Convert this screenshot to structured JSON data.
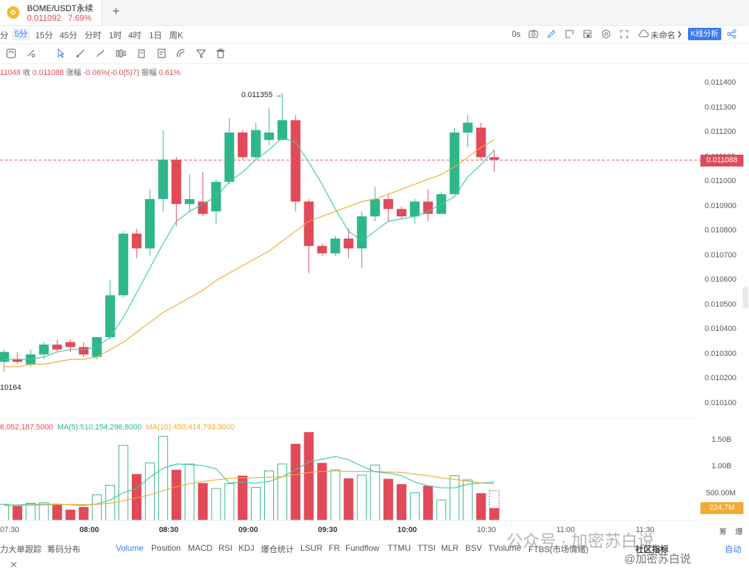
{
  "tab": {
    "symbol": "BOME/USDT永续",
    "price": "0.011092",
    "change": "7.69%",
    "add": "+"
  },
  "timeframes": [
    "分",
    "5分",
    "15分",
    "45分",
    "分时",
    "1时",
    "4时",
    "1日",
    "周K"
  ],
  "active_timeframe_index": 1,
  "right_tools": {
    "countdown": "0s",
    "layout_name": "未命名",
    "analysis_button": "K线分析"
  },
  "ohlc_line": {
    "open": "11048",
    "close_label": "收",
    "close": "0.011088",
    "chg_label": "涨幅",
    "chg": "-0.06%(-0.0(5)7)",
    "amp_label": "振幅",
    "amp": "0.61%"
  },
  "price_axis": [
    "0.011400",
    "0.011300",
    "0.011200",
    "0.011100",
    "0.011000",
    "0.010900",
    "0.010800",
    "0.010700",
    "0.010600",
    "0.010500",
    "0.010400",
    "0.010300",
    "0.010200",
    "0.010100"
  ],
  "current_price": "0.011088",
  "high_label": "0.011355 →",
  "low_label": "10164",
  "volume_legend": {
    "vol": "6,052,187.5000",
    "ma5": "MA(5):510,154,296.8000",
    "ma10": "MA(10):450,414,793.3000"
  },
  "volume_axis": [
    "1.50B",
    "1.00B",
    "500.00M"
  ],
  "current_volume": "224.7M",
  "time_axis": [
    "07:30",
    "08:00",
    "08:30",
    "09:00",
    "09:30",
    "10:00",
    "10:30",
    "11:00",
    "11:30"
  ],
  "right_corner": [
    "筹",
    "爆"
  ],
  "indicators": [
    "力大单跟踪",
    "筹码分布",
    "Volume",
    "Position",
    "MACD",
    "RSI",
    "KDJ",
    "爆仓统计",
    "LSUR",
    "FR",
    "Fundflow",
    "TTMU",
    "TTSI",
    "MLR",
    "BSV",
    "TVolume",
    "FTBS(市场情绪)"
  ],
  "active_indicator_index": 2,
  "community": "社区指标",
  "auto": "自动",
  "watermark": "公众号 · 加密苏白说",
  "watermark_small": "@加密苏白说",
  "colors": {
    "up": "#2fb68a",
    "down": "#e04a59",
    "ma5": "#3fc9a9",
    "ma10": "#f3a932",
    "accent": "#3b7cf6"
  },
  "chart_data": {
    "type": "candlestick",
    "price_range": [
      0.0101,
      0.0114
    ],
    "candles": [
      {
        "o": 0.01027,
        "h": 0.01032,
        "l": 0.01023,
        "c": 0.01031
      },
      {
        "o": 0.01028,
        "h": 0.01031,
        "l": 0.01026,
        "c": 0.01027
      },
      {
        "o": 0.01026,
        "h": 0.01032,
        "l": 0.01025,
        "c": 0.0103
      },
      {
        "o": 0.0103,
        "h": 0.01035,
        "l": 0.01028,
        "c": 0.01034
      },
      {
        "o": 0.01034,
        "h": 0.01036,
        "l": 0.01031,
        "c": 0.01032
      },
      {
        "o": 0.01035,
        "h": 0.01036,
        "l": 0.01031,
        "c": 0.01033
      },
      {
        "o": 0.01033,
        "h": 0.01035,
        "l": 0.01029,
        "c": 0.0103
      },
      {
        "o": 0.01029,
        "h": 0.01037,
        "l": 0.01028,
        "c": 0.01037
      },
      {
        "o": 0.01037,
        "h": 0.0106,
        "l": 0.01036,
        "c": 0.01054
      },
      {
        "o": 0.01054,
        "h": 0.0108,
        "l": 0.01053,
        "c": 0.01079
      },
      {
        "o": 0.01079,
        "h": 0.01081,
        "l": 0.01069,
        "c": 0.01073
      },
      {
        "o": 0.01073,
        "h": 0.01097,
        "l": 0.0107,
        "c": 0.01093
      },
      {
        "o": 0.01093,
        "h": 0.01121,
        "l": 0.01088,
        "c": 0.01109
      },
      {
        "o": 0.01109,
        "h": 0.0111,
        "l": 0.01082,
        "c": 0.01091
      },
      {
        "o": 0.01091,
        "h": 0.01103,
        "l": 0.01088,
        "c": 0.01093
      },
      {
        "o": 0.01092,
        "h": 0.01104,
        "l": 0.01086,
        "c": 0.01087
      },
      {
        "o": 0.01088,
        "h": 0.01101,
        "l": 0.01083,
        "c": 0.011
      },
      {
        "o": 0.011,
        "h": 0.01126,
        "l": 0.01099,
        "c": 0.0112
      },
      {
        "o": 0.0112,
        "h": 0.01121,
        "l": 0.01109,
        "c": 0.0111
      },
      {
        "o": 0.0111,
        "h": 0.01124,
        "l": 0.01109,
        "c": 0.01121
      },
      {
        "o": 0.01117,
        "h": 0.0113,
        "l": 0.01115,
        "c": 0.0112
      },
      {
        "o": 0.01117,
        "h": 0.01136,
        "l": 0.01117,
        "c": 0.01125
      },
      {
        "o": 0.01125,
        "h": 0.01127,
        "l": 0.01088,
        "c": 0.01092
      },
      {
        "o": 0.01092,
        "h": 0.01093,
        "l": 0.01063,
        "c": 0.01074
      },
      {
        "o": 0.01074,
        "h": 0.01075,
        "l": 0.0107,
        "c": 0.01071
      },
      {
        "o": 0.01071,
        "h": 0.01078,
        "l": 0.0107,
        "c": 0.01077
      },
      {
        "o": 0.01077,
        "h": 0.01081,
        "l": 0.01069,
        "c": 0.01073
      },
      {
        "o": 0.01073,
        "h": 0.01088,
        "l": 0.01065,
        "c": 0.01086
      },
      {
        "o": 0.01086,
        "h": 0.01098,
        "l": 0.01084,
        "c": 0.01093
      },
      {
        "o": 0.01093,
        "h": 0.01095,
        "l": 0.01084,
        "c": 0.01089
      },
      {
        "o": 0.01089,
        "h": 0.0109,
        "l": 0.01085,
        "c": 0.01086
      },
      {
        "o": 0.01086,
        "h": 0.01093,
        "l": 0.01083,
        "c": 0.01092
      },
      {
        "o": 0.01092,
        "h": 0.01097,
        "l": 0.01084,
        "c": 0.01087
      },
      {
        "o": 0.01087,
        "h": 0.01096,
        "l": 0.01087,
        "c": 0.01095
      },
      {
        "o": 0.01095,
        "h": 0.01122,
        "l": 0.01095,
        "c": 0.0112
      },
      {
        "o": 0.0112,
        "h": 0.01127,
        "l": 0.01114,
        "c": 0.01124
      },
      {
        "o": 0.01122,
        "h": 0.01124,
        "l": 0.01109,
        "c": 0.0111
      },
      {
        "o": 0.0111,
        "h": 0.01113,
        "l": 0.01104,
        "c": 0.01109
      }
    ],
    "ma5": [
      0.01028,
      0.01028,
      0.01028,
      0.01029,
      0.01031,
      0.01032,
      0.01032,
      0.01033,
      0.01037,
      0.01045,
      0.01055,
      0.01065,
      0.01075,
      0.01084,
      0.01088,
      0.01091,
      0.01094,
      0.011,
      0.01104,
      0.01109,
      0.01113,
      0.01118,
      0.01116,
      0.01108,
      0.01099,
      0.01089,
      0.0108,
      0.01076,
      0.0108,
      0.01084,
      0.01085,
      0.01086,
      0.01088,
      0.01091,
      0.01094,
      0.01102,
      0.01107,
      0.01113
    ],
    "ma10": [
      0.01025,
      0.01025,
      0.01026,
      0.01026,
      0.01027,
      0.01028,
      0.01028,
      0.01029,
      0.01032,
      0.01035,
      0.01039,
      0.01043,
      0.01047,
      0.0105,
      0.01053,
      0.01056,
      0.0106,
      0.01063,
      0.01066,
      0.01069,
      0.01072,
      0.01076,
      0.0108,
      0.01084,
      0.01086,
      0.01088,
      0.0109,
      0.01092,
      0.01093,
      0.01095,
      0.01097,
      0.01099,
      0.01101,
      0.01103,
      0.01106,
      0.0111,
      0.01114,
      0.01117
    ],
    "volume_range": [
      0,
      1600000000
    ],
    "volume": [
      300,
      270,
      320,
      330,
      310,
      200,
      250,
      480,
      660,
      1410,
      870,
      1080,
      1580,
      950,
      1060,
      700,
      600,
      690,
      840,
      620,
      930,
      1060,
      1440,
      1660,
      1080,
      950,
      790,
      850,
      1040,
      780,
      680,
      520,
      650,
      380,
      840,
      760,
      510,
      230
    ],
    "vol_ma5": [
      290,
      290,
      300,
      300,
      305,
      290,
      280,
      310,
      380,
      520,
      600,
      810,
      980,
      1060,
      1050,
      1030,
      970,
      700,
      720,
      700,
      730,
      820,
      950,
      1100,
      1150,
      1200,
      1140,
      1020,
      910,
      890,
      840,
      720,
      650,
      610,
      610,
      680,
      700,
      720
    ],
    "vol_ma10": [
      280,
      280,
      285,
      290,
      295,
      295,
      295,
      300,
      320,
      370,
      420,
      480,
      560,
      630,
      690,
      730,
      760,
      790,
      800,
      800,
      810,
      820,
      860,
      900,
      920,
      930,
      920,
      920,
      920,
      910,
      900,
      870,
      840,
      800,
      770,
      740,
      700,
      690
    ]
  }
}
